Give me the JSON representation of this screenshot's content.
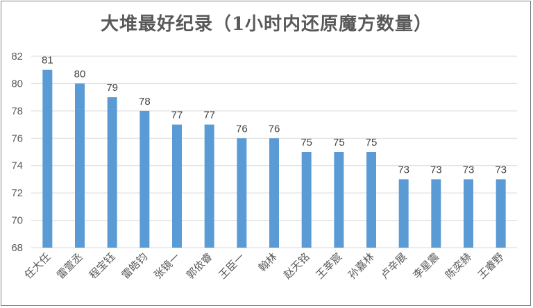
{
  "chart_data": {
    "type": "bar",
    "title": "大堆最好纪录（1小时内还原魔方数量）",
    "categories": [
      "任大任",
      "雷萱丞",
      "程宝钰",
      "雷皓钧",
      "张镜一",
      "郭依睿",
      "王臣一",
      "翰林",
      "赵天铭",
      "王莘宸",
      "孙嘉林",
      "卢辛展",
      "李星震",
      "陈奕赫",
      "王睿野"
    ],
    "values": [
      81,
      80,
      79,
      78,
      77,
      77,
      76,
      76,
      75,
      75,
      75,
      73,
      73,
      73,
      73
    ],
    "ylim": [
      68,
      82
    ],
    "yticks": [
      68,
      70,
      72,
      74,
      76,
      78,
      80,
      82
    ],
    "xlabel": "",
    "ylabel": "",
    "grid": true,
    "bar_color": "#5b9bd5",
    "grid_color": "#d9d9d9"
  }
}
